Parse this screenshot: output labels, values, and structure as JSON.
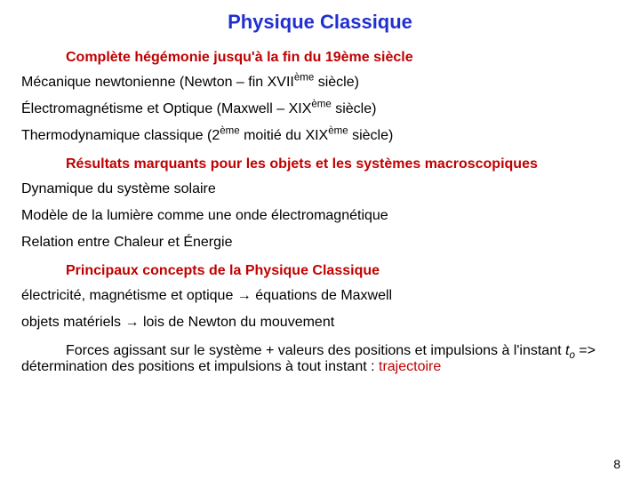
{
  "title": {
    "text": "Physique Classique",
    "color": "#2030d0",
    "fontsize": 22
  },
  "sections": [
    {
      "header": {
        "text": "Complète hégémonie jusqu'à la fin du 19ème siècle",
        "color": "#c00000",
        "fontsize": 16
      },
      "items": [
        {
          "html": "Mécanique newtonienne (Newton – fin XVII<sup>ème</sup> siècle)",
          "fontsize": 16,
          "color": "#000000"
        },
        {
          "html": "Électromagnétisme et Optique (Maxwell – XIX<sup>ème</sup> siècle)",
          "fontsize": 16,
          "color": "#000000"
        },
        {
          "html": "Thermodynamique classique (2<sup>ème</sup> moitié du XIX<sup>ème</sup> siècle)",
          "fontsize": 16,
          "color": "#000000"
        }
      ]
    },
    {
      "header": {
        "text": "Résultats marquants pour les objets et les systèmes macroscopiques",
        "color": "#c00000",
        "fontsize": 16
      },
      "items": [
        {
          "html": "Dynamique du système solaire",
          "fontsize": 16,
          "color": "#000000"
        },
        {
          "html": "Modèle de la lumière comme une onde électromagnétique",
          "fontsize": 16,
          "color": "#000000"
        },
        {
          "html": "Relation entre Chaleur et Énergie",
          "fontsize": 16,
          "color": "#000000"
        }
      ]
    },
    {
      "header": {
        "text": "Principaux concepts de la Physique Classique",
        "color": "#c00000",
        "fontsize": 16
      },
      "items": [
        {
          "html": "électricité, magnétisme et optique → équations de Maxwell",
          "fontsize": 16,
          "color": "#000000"
        },
        {
          "html": "objets matériels → lois de Newton du mouvement",
          "fontsize": 16,
          "color": "#000000"
        }
      ]
    }
  ],
  "footer": {
    "html": "<span class=\"footer-lead\"></span>Forces agissant sur le système + valeurs des positions et impulsions à l'instant <span class=\"ital\">t<span class=\"sub\">o</span></span> =&gt; détermination des positions et impulsions à tout instant : <span style=\"color:#c00000\">trajectoire</span>",
    "fontsize": 16,
    "color": "#000000"
  },
  "page_number": {
    "text": "8",
    "fontsize": 14,
    "color": "#000000"
  },
  "background_color": "#ffffff"
}
